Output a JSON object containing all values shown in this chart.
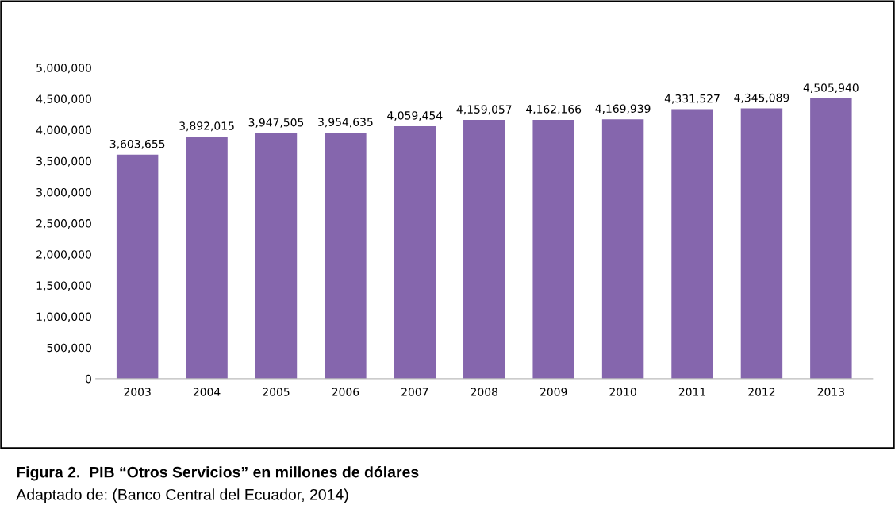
{
  "chart_data": {
    "type": "bar",
    "title": "Figura 2.  PIB “Otros Servicios” en millones de dólares",
    "annotations": [
      "Adaptado de: (Banco Central del Ecuador, 2014)"
    ],
    "categories": [
      "2003",
      "2004",
      "2005",
      "2006",
      "2007",
      "2008",
      "2009",
      "2010",
      "2011",
      "2012",
      "2013"
    ],
    "values": [
      3603655,
      3892015,
      3947505,
      3954635,
      4059454,
      4159057,
      4162166,
      4169939,
      4331527,
      4345089,
      4505940
    ],
    "color": "#8566ad",
    "ylim": [
      0,
      5000000
    ],
    "yticks": [
      {
        "value": 0,
        "label": "0"
      },
      {
        "value": 500000,
        "label": "500,000"
      },
      {
        "value": 1000000,
        "label": "1,000,000"
      },
      {
        "value": 1500000,
        "label": "1,500,000"
      },
      {
        "value": 2000000,
        "label": "2,000,000"
      },
      {
        "value": 2500000,
        "label": "2,500,000"
      },
      {
        "value": 3000000,
        "label": "3,000,000"
      },
      {
        "value": 3500000,
        "label": "3,500,000"
      },
      {
        "value": 4000000,
        "label": "4,000,000"
      },
      {
        "value": 4500000,
        "label": "4,500,000"
      },
      {
        "value": 5000000,
        "label": "5,000,000"
      }
    ],
    "value_labels": [
      "3,603,655",
      "3,892,015",
      "3,947,505",
      "3,954,635",
      "4,059,454",
      "4,159,057",
      "4,162,166",
      "4,169,939",
      "4,331,527",
      "4,345,089",
      "4,505,940"
    ],
    "grid": false
  }
}
